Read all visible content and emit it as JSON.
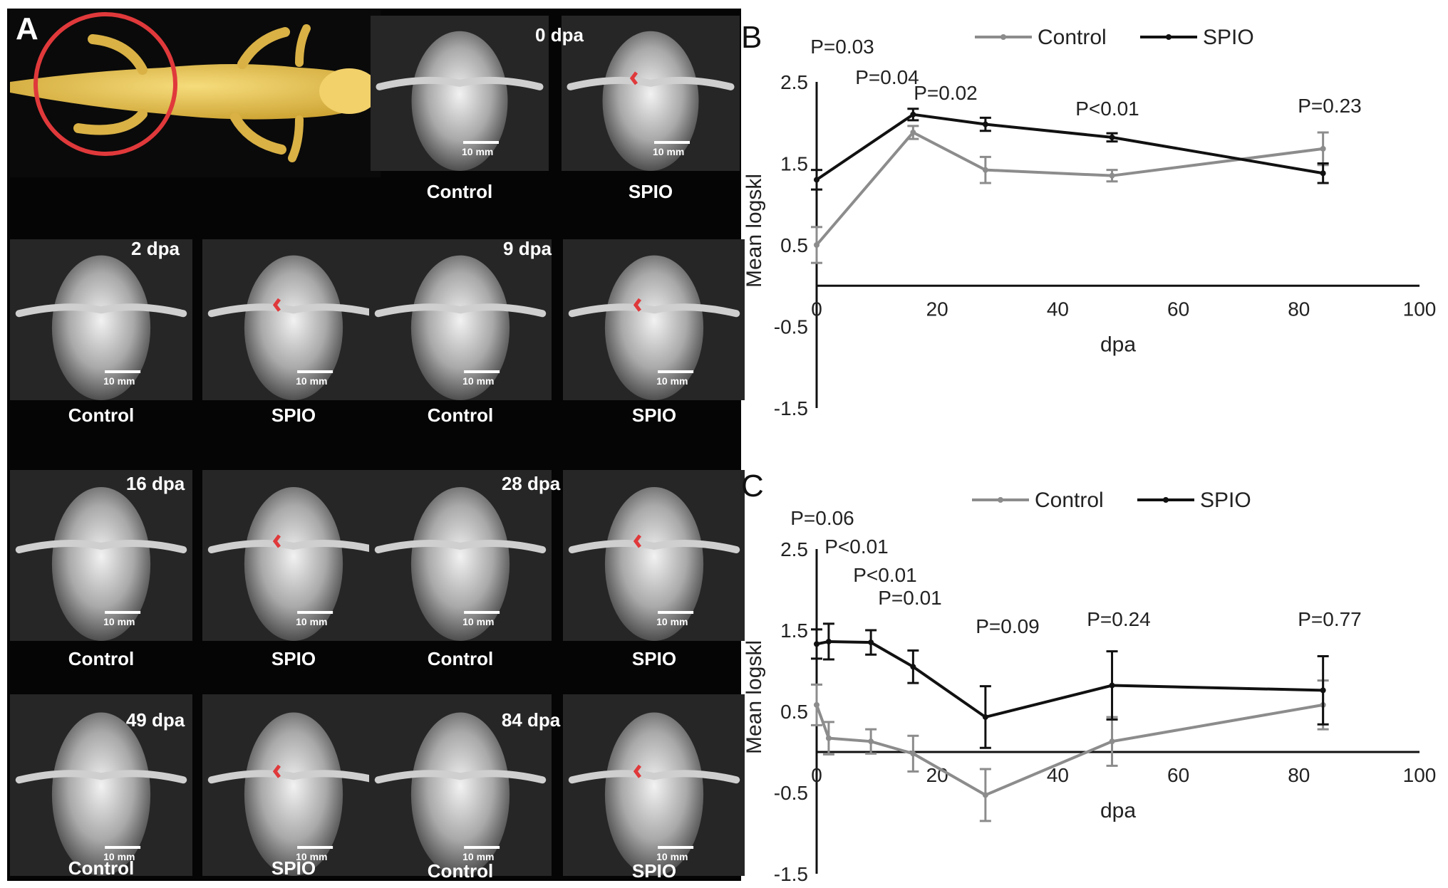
{
  "panel_a": {
    "letter": "A",
    "scale_bar_label": "10 mm",
    "groups": [
      {
        "time": "0 dpa",
        "control": "Control",
        "spio": "SPIO"
      },
      {
        "time": "2 dpa",
        "control": "Control",
        "spio": "SPIO"
      },
      {
        "time": "9 dpa",
        "control": "Control",
        "spio": "SPIO"
      },
      {
        "time": "16 dpa",
        "control": "Control",
        "spio": "SPIO"
      },
      {
        "time": "28 dpa",
        "control": "Control",
        "spio": "SPIO"
      },
      {
        "time": "49 dpa",
        "control": "Control",
        "spio": "SPIO"
      },
      {
        "time": "84 dpa",
        "control": "Control",
        "spio": "SPIO"
      }
    ]
  },
  "colors": {
    "control": "#8c8c8c",
    "spio": "#111111",
    "highlight_circle": "#e0393b",
    "salamander": "#e8c95a"
  },
  "chart_data": [
    {
      "panel": "B",
      "type": "line",
      "xlabel": "dpa",
      "ylabel": "Mean logskl",
      "xlim": [
        0,
        100
      ],
      "ylim": [
        -1.5,
        2.5
      ],
      "xticks": [
        0,
        20,
        40,
        60,
        80,
        100
      ],
      "yticks": [
        2.5,
        1.5,
        0.5,
        -0.5,
        -1.5
      ],
      "legend": "top",
      "series": [
        {
          "name": "Control",
          "x": [
            0,
            16,
            28,
            49,
            84
          ],
          "y": [
            0.5,
            1.88,
            1.42,
            1.35,
            1.68
          ],
          "err": [
            0.22,
            0.08,
            0.16,
            0.07,
            0.2
          ]
        },
        {
          "name": "SPIO",
          "x": [
            0,
            16,
            28,
            49,
            84
          ],
          "y": [
            1.3,
            2.1,
            1.98,
            1.82,
            1.38
          ],
          "err": [
            0.12,
            0.07,
            0.08,
            0.05,
            0.12
          ]
        }
      ],
      "annotations": [
        {
          "x": 0,
          "text": "P=0.03"
        },
        {
          "x": 16,
          "text": "P=0.04"
        },
        {
          "x": 28,
          "text": "P=0.02"
        },
        {
          "x": 49,
          "text": "P<0.01"
        },
        {
          "x": 84,
          "text": "P=0.23"
        }
      ]
    },
    {
      "panel": "C",
      "type": "line",
      "xlabel": "dpa",
      "ylabel": "Mean logskl",
      "xlim": [
        0,
        100
      ],
      "ylim": [
        -1.5,
        2.5
      ],
      "xticks": [
        0,
        20,
        40,
        60,
        80,
        100
      ],
      "yticks": [
        2.5,
        1.5,
        0.5,
        -0.5,
        -1.5
      ],
      "legend": "top",
      "series": [
        {
          "name": "Control",
          "x": [
            0,
            2,
            9,
            16,
            28,
            49,
            84
          ],
          "y": [
            0.58,
            0.17,
            0.13,
            -0.02,
            -0.53,
            0.13,
            0.58
          ],
          "err": [
            0.25,
            0.2,
            0.15,
            0.22,
            0.32,
            0.3,
            0.3
          ]
        },
        {
          "name": "SPIO",
          "x": [
            0,
            2,
            9,
            16,
            28,
            49,
            84
          ],
          "y": [
            1.33,
            1.36,
            1.35,
            1.05,
            0.43,
            0.82,
            0.76
          ],
          "err": [
            0.18,
            0.22,
            0.15,
            0.2,
            0.38,
            0.42,
            0.42
          ]
        }
      ],
      "annotations": [
        {
          "x": 0,
          "text": "P=0.06"
        },
        {
          "x": 2,
          "text": "P<0.01"
        },
        {
          "x": 9,
          "text": "P<0.01"
        },
        {
          "x": 16,
          "text": "P=0.01"
        },
        {
          "x": 28,
          "text": "P=0.09"
        },
        {
          "x": 49,
          "text": "P=0.24"
        },
        {
          "x": 84,
          "text": "P=0.77"
        }
      ]
    }
  ]
}
